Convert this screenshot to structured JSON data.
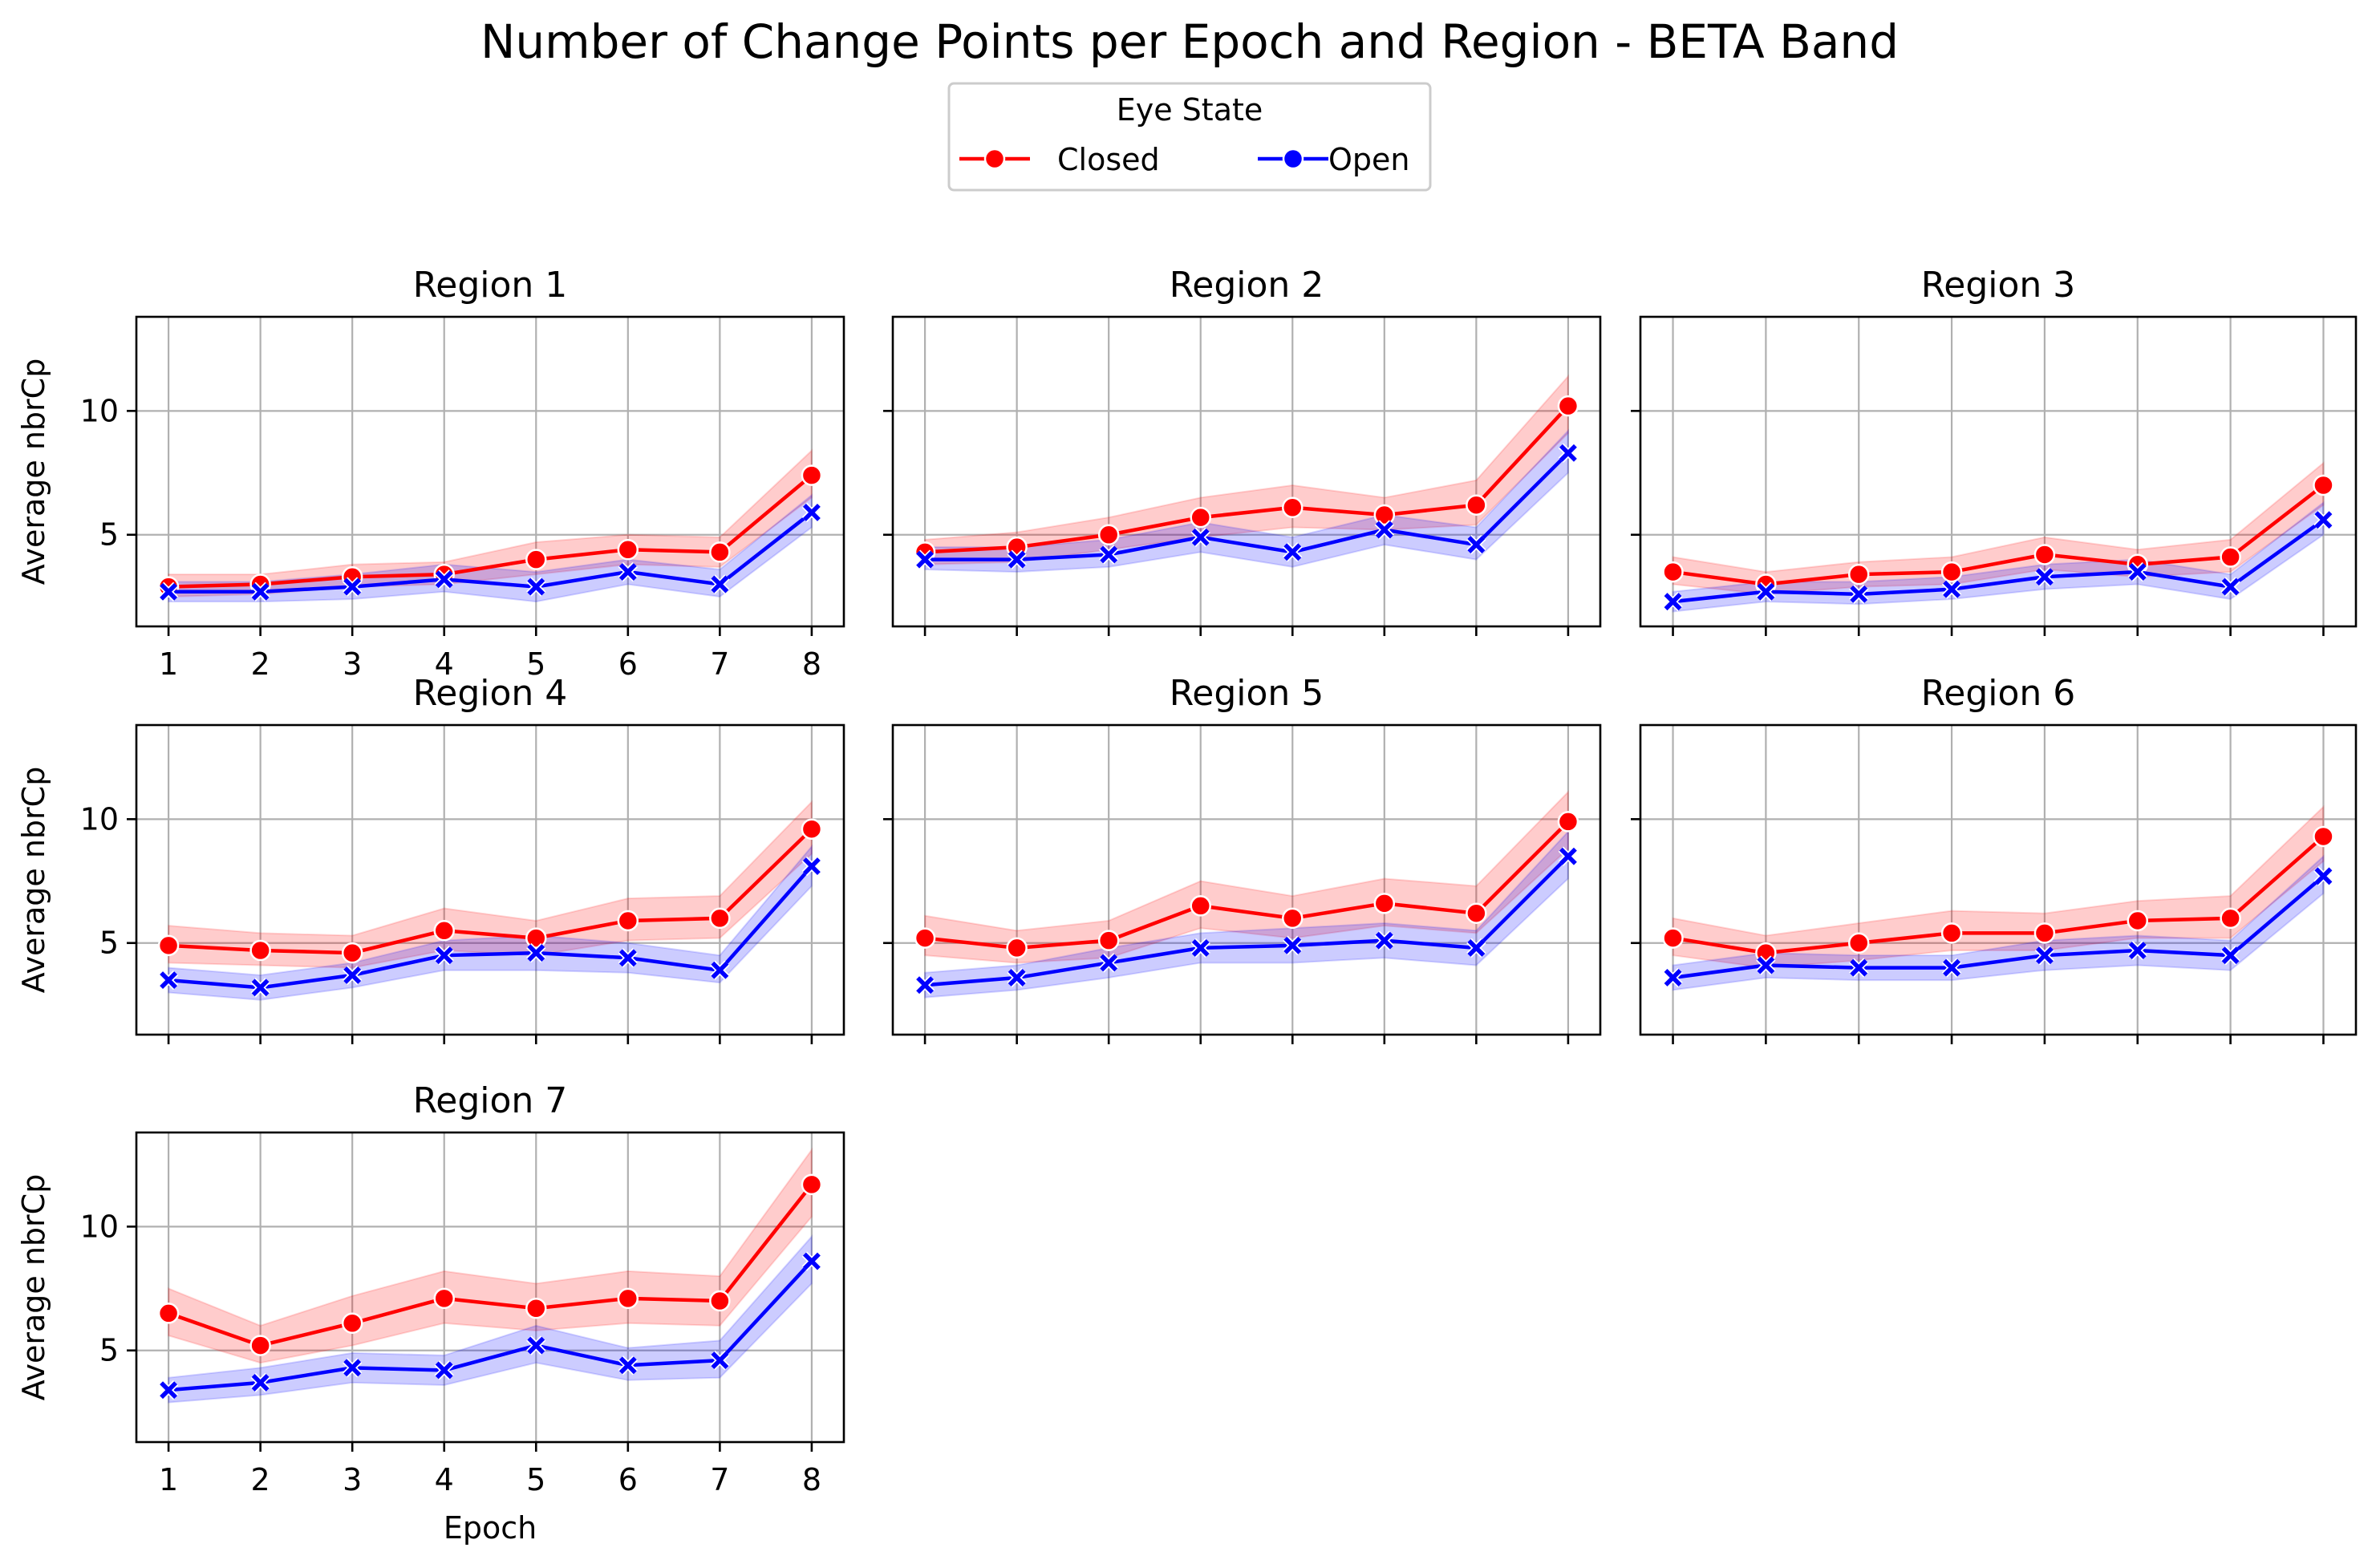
{
  "figure": {
    "title": "Number of Change Points per Epoch and Region - BETA Band",
    "legend": {
      "title": "Eye State",
      "placement": "top-center",
      "entries": [
        {
          "label": "Closed",
          "color": "#ff0000",
          "marker": "circle"
        },
        {
          "label": "Open",
          "color": "#0000ff",
          "marker": "x"
        }
      ]
    }
  },
  "chart_data": [
    {
      "type": "line",
      "title": "Region 1",
      "xlabel": "",
      "ylabel": "Average nbrCp",
      "x": [
        1,
        2,
        3,
        4,
        5,
        6,
        7,
        8
      ],
      "xlim": [
        0.65,
        8.35
      ],
      "ylim": [
        1.3,
        13.8
      ],
      "yticks": [
        5,
        10
      ],
      "xticks": [
        "1",
        "2",
        "3",
        "4",
        "5",
        "6",
        "7",
        "8"
      ],
      "grid": true,
      "series": [
        {
          "name": "Closed",
          "color": "#ff0000",
          "marker": "circle",
          "values": [
            2.9,
            3.0,
            3.3,
            3.4,
            4.0,
            4.4,
            4.3,
            7.4
          ],
          "ci_lower": [
            2.5,
            2.6,
            2.9,
            3.0,
            3.4,
            3.8,
            3.7,
            6.5
          ],
          "ci_upper": [
            3.4,
            3.4,
            3.8,
            3.9,
            4.7,
            5.0,
            4.9,
            8.4
          ]
        },
        {
          "name": "Open",
          "color": "#0000ff",
          "marker": "x",
          "values": [
            2.7,
            2.7,
            2.9,
            3.2,
            2.9,
            3.5,
            3.0,
            5.9
          ],
          "ci_lower": [
            2.3,
            2.3,
            2.4,
            2.7,
            2.3,
            3.0,
            2.5,
            5.3
          ],
          "ci_upper": [
            3.1,
            3.1,
            3.4,
            3.8,
            3.5,
            4.0,
            3.6,
            6.6
          ]
        }
      ]
    },
    {
      "type": "line",
      "title": "Region 2",
      "xlabel": "",
      "ylabel": "",
      "x": [
        1,
        2,
        3,
        4,
        5,
        6,
        7,
        8
      ],
      "xlim": [
        0.65,
        8.35
      ],
      "ylim": [
        1.3,
        13.8
      ],
      "yticks": [
        5,
        10
      ],
      "xticks": [],
      "grid": true,
      "series": [
        {
          "name": "Closed",
          "color": "#ff0000",
          "marker": "circle",
          "values": [
            4.3,
            4.5,
            5.0,
            5.7,
            6.1,
            5.8,
            6.2,
            10.2
          ],
          "ci_lower": [
            3.8,
            3.9,
            4.4,
            4.9,
            5.3,
            5.2,
            5.4,
            9.1
          ],
          "ci_upper": [
            4.8,
            5.1,
            5.7,
            6.5,
            7.0,
            6.5,
            7.2,
            11.4
          ]
        },
        {
          "name": "Open",
          "color": "#0000ff",
          "marker": "x",
          "values": [
            4.0,
            4.0,
            4.2,
            4.9,
            4.3,
            5.2,
            4.6,
            8.3
          ],
          "ci_lower": [
            3.6,
            3.5,
            3.7,
            4.3,
            3.7,
            4.6,
            4.0,
            7.5
          ],
          "ci_upper": [
            4.5,
            4.5,
            4.8,
            5.5,
            4.9,
            5.8,
            5.3,
            9.2
          ]
        }
      ]
    },
    {
      "type": "line",
      "title": "Region 3",
      "xlabel": "",
      "ylabel": "",
      "x": [
        1,
        2,
        3,
        4,
        5,
        6,
        7,
        8
      ],
      "xlim": [
        0.65,
        8.35
      ],
      "ylim": [
        1.3,
        13.8
      ],
      "yticks": [
        5,
        10
      ],
      "xticks": [],
      "grid": true,
      "series": [
        {
          "name": "Closed",
          "color": "#ff0000",
          "marker": "circle",
          "values": [
            3.5,
            3.0,
            3.4,
            3.5,
            4.2,
            3.8,
            4.1,
            7.0
          ],
          "ci_lower": [
            3.0,
            2.6,
            2.9,
            3.0,
            3.6,
            3.3,
            3.5,
            6.2
          ],
          "ci_upper": [
            4.1,
            3.5,
            3.9,
            4.1,
            4.9,
            4.4,
            4.8,
            7.9
          ]
        },
        {
          "name": "Open",
          "color": "#0000ff",
          "marker": "x",
          "values": [
            2.3,
            2.7,
            2.6,
            2.8,
            3.3,
            3.5,
            2.9,
            5.6
          ],
          "ci_lower": [
            1.9,
            2.3,
            2.2,
            2.4,
            2.8,
            3.0,
            2.4,
            5.0
          ],
          "ci_upper": [
            2.7,
            3.1,
            3.1,
            3.3,
            3.8,
            4.0,
            3.4,
            6.3
          ]
        }
      ]
    },
    {
      "type": "line",
      "title": "Region 4",
      "xlabel": "",
      "ylabel": "Average nbrCp",
      "x": [
        1,
        2,
        3,
        4,
        5,
        6,
        7,
        8
      ],
      "xlim": [
        0.65,
        8.35
      ],
      "ylim": [
        1.3,
        13.8
      ],
      "yticks": [
        5,
        10
      ],
      "xticks": [],
      "grid": true,
      "series": [
        {
          "name": "Closed",
          "color": "#ff0000",
          "marker": "circle",
          "values": [
            4.9,
            4.7,
            4.6,
            5.5,
            5.2,
            5.9,
            6.0,
            9.6
          ],
          "ci_lower": [
            4.2,
            4.1,
            4.0,
            4.7,
            4.5,
            5.1,
            5.2,
            8.6
          ],
          "ci_upper": [
            5.7,
            5.4,
            5.3,
            6.4,
            5.9,
            6.8,
            6.9,
            10.7
          ]
        },
        {
          "name": "Open",
          "color": "#0000ff",
          "marker": "x",
          "values": [
            3.5,
            3.2,
            3.7,
            4.5,
            4.6,
            4.4,
            3.9,
            8.1
          ],
          "ci_lower": [
            3.0,
            2.7,
            3.2,
            3.9,
            3.9,
            3.8,
            3.4,
            7.3
          ],
          "ci_upper": [
            4.0,
            3.7,
            4.2,
            5.1,
            5.3,
            5.0,
            4.5,
            8.9
          ]
        }
      ]
    },
    {
      "type": "line",
      "title": "Region 5",
      "xlabel": "",
      "ylabel": "",
      "x": [
        1,
        2,
        3,
        4,
        5,
        6,
        7,
        8
      ],
      "xlim": [
        0.65,
        8.35
      ],
      "ylim": [
        1.3,
        13.8
      ],
      "yticks": [
        5,
        10
      ],
      "xticks": [],
      "grid": true,
      "series": [
        {
          "name": "Closed",
          "color": "#ff0000",
          "marker": "circle",
          "values": [
            5.2,
            4.8,
            5.1,
            6.5,
            6.0,
            6.6,
            6.2,
            9.9
          ],
          "ci_lower": [
            4.5,
            4.2,
            4.4,
            5.6,
            5.2,
            5.7,
            5.4,
            8.8
          ],
          "ci_upper": [
            6.1,
            5.5,
            5.9,
            7.5,
            6.9,
            7.6,
            7.3,
            11.1
          ]
        },
        {
          "name": "Open",
          "color": "#0000ff",
          "marker": "x",
          "values": [
            3.3,
            3.6,
            4.2,
            4.8,
            4.9,
            5.1,
            4.8,
            8.5
          ],
          "ci_lower": [
            2.8,
            3.1,
            3.6,
            4.2,
            4.2,
            4.4,
            4.1,
            7.6
          ],
          "ci_upper": [
            3.8,
            4.1,
            4.8,
            5.4,
            5.6,
            5.8,
            5.5,
            9.5
          ]
        }
      ]
    },
    {
      "type": "line",
      "title": "Region 6",
      "xlabel": "",
      "ylabel": "",
      "x": [
        1,
        2,
        3,
        4,
        5,
        6,
        7,
        8
      ],
      "xlim": [
        0.65,
        8.35
      ],
      "ylim": [
        1.3,
        13.8
      ],
      "yticks": [
        5,
        10
      ],
      "xticks": [],
      "grid": true,
      "series": [
        {
          "name": "Closed",
          "color": "#ff0000",
          "marker": "circle",
          "values": [
            5.2,
            4.6,
            5.0,
            5.4,
            5.4,
            5.9,
            6.0,
            9.3
          ],
          "ci_lower": [
            4.5,
            4.0,
            4.3,
            4.7,
            4.7,
            5.2,
            5.2,
            8.3
          ],
          "ci_upper": [
            6.0,
            5.3,
            5.8,
            6.3,
            6.2,
            6.7,
            6.9,
            10.5
          ]
        },
        {
          "name": "Open",
          "color": "#0000ff",
          "marker": "x",
          "values": [
            3.6,
            4.1,
            4.0,
            4.0,
            4.5,
            4.7,
            4.5,
            7.7
          ],
          "ci_lower": [
            3.1,
            3.6,
            3.5,
            3.5,
            3.9,
            4.1,
            3.9,
            7.0
          ],
          "ci_upper": [
            4.1,
            4.6,
            4.5,
            4.5,
            5.1,
            5.3,
            5.1,
            8.5
          ]
        }
      ]
    },
    {
      "type": "line",
      "title": "Region 7",
      "xlabel": "Epoch",
      "ylabel": "Average nbrCp",
      "x": [
        1,
        2,
        3,
        4,
        5,
        6,
        7,
        8
      ],
      "xlim": [
        0.65,
        8.35
      ],
      "ylim": [
        1.3,
        13.8
      ],
      "yticks": [
        5,
        10
      ],
      "xticks": [
        "1",
        "2",
        "3",
        "4",
        "5",
        "6",
        "7",
        "8"
      ],
      "grid": true,
      "series": [
        {
          "name": "Closed",
          "color": "#ff0000",
          "marker": "circle",
          "values": [
            6.5,
            5.2,
            6.1,
            7.1,
            6.7,
            7.1,
            7.0,
            11.7
          ],
          "ci_lower": [
            5.6,
            4.5,
            5.2,
            6.1,
            5.8,
            6.1,
            6.0,
            10.4
          ],
          "ci_upper": [
            7.5,
            6.0,
            7.2,
            8.2,
            7.7,
            8.2,
            8.0,
            13.1
          ]
        },
        {
          "name": "Open",
          "color": "#0000ff",
          "marker": "x",
          "values": [
            3.4,
            3.7,
            4.3,
            4.2,
            5.2,
            4.4,
            4.6,
            8.6
          ],
          "ci_lower": [
            2.9,
            3.2,
            3.7,
            3.6,
            4.5,
            3.8,
            3.9,
            7.7
          ],
          "ci_upper": [
            3.9,
            4.3,
            4.9,
            4.8,
            6.0,
            5.1,
            5.4,
            9.6
          ]
        }
      ]
    }
  ]
}
